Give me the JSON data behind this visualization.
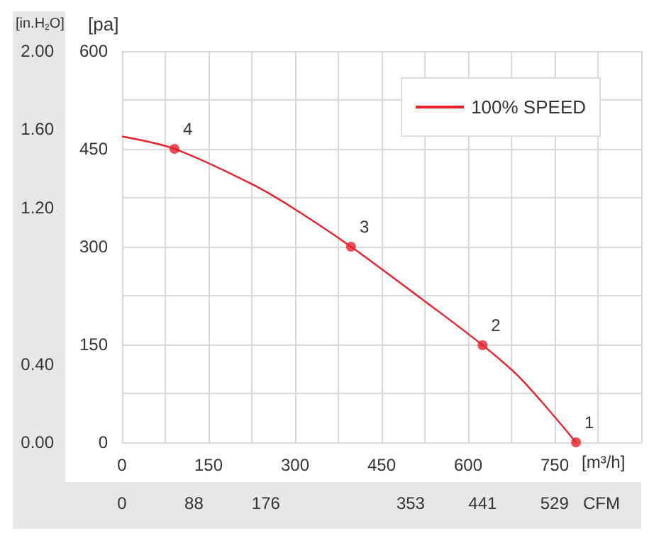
{
  "chart_data": {
    "type": "line",
    "xlabel": "[m³/h]",
    "ylabel": "[pa]",
    "y2label": "[in.H$_{2}$O]",
    "x2label": "CFM",
    "xlim": [
      0,
      900
    ],
    "xticks": [
      0,
      {
        "value": 75,
        "label": null
      },
      150,
      {
        "value": 225,
        "label": null
      },
      300,
      {
        "value": 375,
        "label": null
      },
      450,
      {
        "value": 525,
        "label": null
      },
      600,
      {
        "value": 675,
        "label": null
      },
      750,
      {
        "value": 825,
        "label": null
      },
      {
        "value": 900,
        "label": null
      }
    ],
    "x2lim": [
      0,
      635
    ],
    "x2ticks": [
      0,
      88,
      176,
      353,
      441,
      529
    ],
    "ylim": [
      0,
      600
    ],
    "yticks": [
      0,
      {
        "value": 75,
        "label": null
      },
      150,
      {
        "value": 225,
        "label": null
      },
      300,
      {
        "value": 375,
        "label": null
      },
      450,
      {
        "value": 525,
        "label": null
      },
      600
    ],
    "y2lim": [
      0,
      2
    ],
    "y2ticks": [
      {
        "value": 0,
        "label": "0.00"
      },
      {
        "value": 0.4,
        "label": "0.40"
      },
      {
        "value": 1.2,
        "label": "1.20"
      },
      {
        "value": 1.6,
        "label": "1.60"
      },
      {
        "value": 2,
        "label": "2.00"
      }
    ],
    "grid": true,
    "legend": "top right",
    "series": [
      {
        "name": "100% SPEED",
        "type": "line",
        "color": "#e8202a",
        "marker": "none",
        "x": [
          0,
          91,
          225,
          297,
          397,
          527,
          625,
          691,
          787
        ],
        "values": [
          469,
          450,
          396,
          359,
          300,
          215,
          149,
          98,
          0
        ]
      },
      {
        "type": "scatter",
        "color": "#e8202a",
        "marker": "circle",
        "x": [
          787,
          625,
          397,
          91
        ],
        "values": [
          0,
          149,
          300,
          450
        ]
      }
    ],
    "annotations": [
      {
        "text": "1",
        "x": 787,
        "y": 0
      },
      {
        "text": "2",
        "x": 625,
        "y": 149
      },
      {
        "text": "3",
        "x": 397,
        "y": 300
      },
      {
        "text": "4",
        "x": 91,
        "y": 450
      }
    ]
  }
}
